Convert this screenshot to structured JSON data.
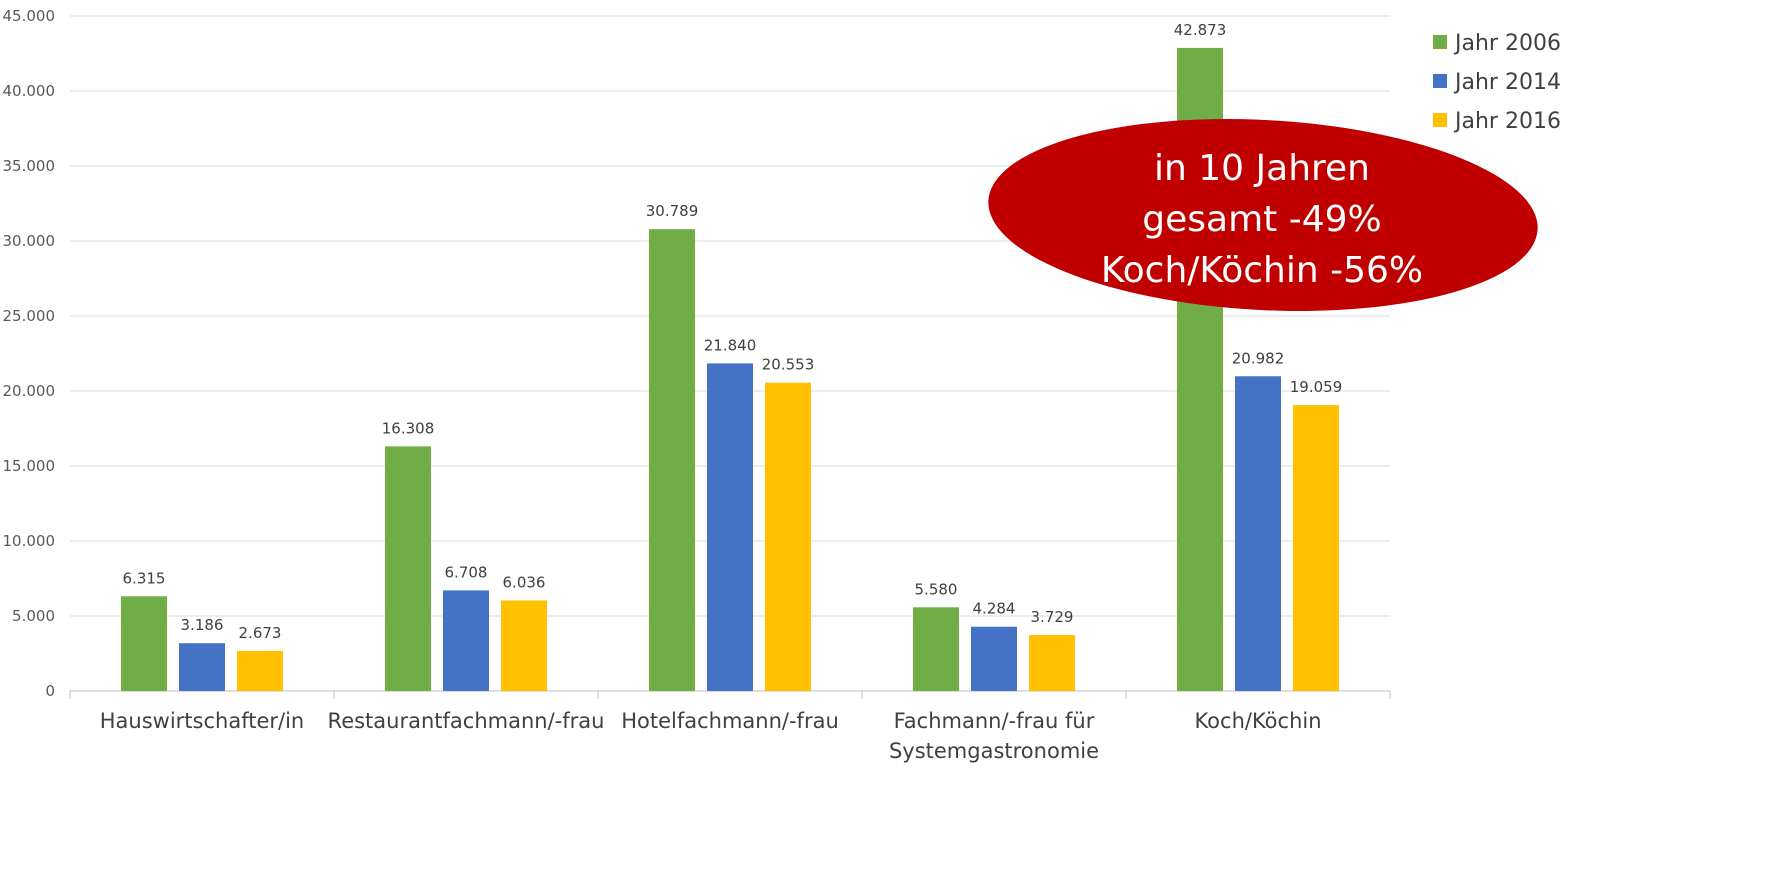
{
  "chart_data": {
    "type": "bar",
    "categories": [
      [
        "Hauswirtschafter/in"
      ],
      [
        "Restaurantfachmann/-frau"
      ],
      [
        "Hotelfachmann/-frau"
      ],
      [
        "Fachmann/-frau für",
        "Systemgastronomie"
      ],
      [
        "Koch/Köchin"
      ]
    ],
    "series": [
      {
        "name": "Jahr 2006",
        "color": "#70ad47",
        "values": [
          6315,
          16308,
          30789,
          5580,
          42873
        ],
        "labels": [
          "6.315",
          "16.308",
          "30.789",
          "5.580",
          "42.873"
        ]
      },
      {
        "name": "Jahr 2014",
        "color": "#4472c4",
        "values": [
          3186,
          6708,
          21840,
          4284,
          20982
        ],
        "labels": [
          "3.186",
          "6.708",
          "21.840",
          "4.284",
          "20.982"
        ]
      },
      {
        "name": "Jahr 2016",
        "color": "#ffc000",
        "values": [
          2673,
          6036,
          20553,
          3729,
          19059
        ],
        "labels": [
          "2.673",
          "6.036",
          "20.553",
          "3.729",
          "19.059"
        ]
      }
    ],
    "ylim": [
      0,
      45000
    ],
    "yticks": [
      0,
      5000,
      10000,
      15000,
      20000,
      25000,
      30000,
      35000,
      40000,
      45000
    ],
    "ytick_labels": [
      "0",
      "5.000",
      "10.000",
      "15.000",
      "20.000",
      "25.000",
      "30.000",
      "35.000",
      "40.000",
      "45.000"
    ],
    "grid": true,
    "legend_position": "top-right",
    "annotation": {
      "lines": [
        "in 10 Jahren",
        "gesamt -49%",
        "Koch/Köchin -56%"
      ],
      "color": "#c00000",
      "text_color": "#ffffff"
    }
  }
}
